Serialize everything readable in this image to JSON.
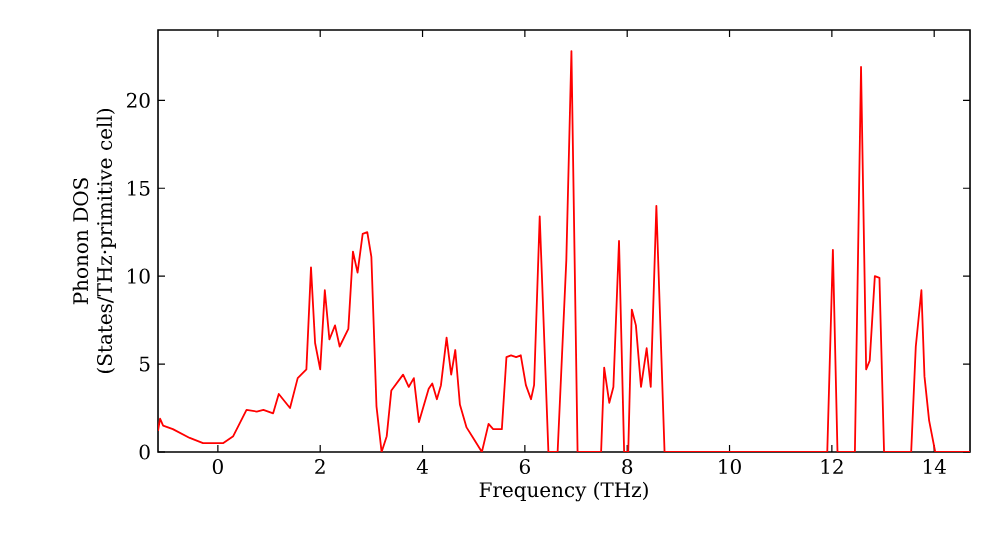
{
  "chart_data": {
    "type": "line",
    "xlabel": "Frequency (THz)",
    "ylabel": "Phonon DOS (States/THz·primitive cell)",
    "xlim": [
      -1.17,
      14.7
    ],
    "ylim": [
      0,
      24
    ],
    "xticks": [
      0,
      2,
      4,
      6,
      8,
      10,
      12,
      14
    ],
    "yticks": [
      0,
      5,
      10,
      15,
      20
    ],
    "series": [
      {
        "color": "#ff0000",
        "x": [
          -1.17,
          -1.13,
          -1.07,
          -0.88,
          -0.55,
          -0.29,
          0.1,
          0.3,
          0.56,
          0.76,
          0.89,
          1.08,
          1.19,
          1.41,
          1.56,
          1.73,
          1.82,
          1.9,
          2.0,
          2.09,
          2.18,
          2.29,
          2.38,
          2.55,
          2.64,
          2.73,
          2.83,
          2.92,
          3.0,
          3.1,
          3.2,
          3.3,
          3.39,
          3.62,
          3.73,
          3.83,
          3.93,
          4.12,
          4.19,
          4.28,
          4.36,
          4.47,
          4.56,
          4.64,
          4.73,
          4.86,
          4.99,
          5.16,
          5.29,
          5.38,
          5.55,
          5.64,
          5.73,
          5.83,
          5.92,
          6.02,
          6.12,
          6.18,
          6.29,
          6.46,
          6.64,
          6.81,
          6.91,
          7.03,
          7.49,
          7.55,
          7.65,
          7.73,
          7.84,
          7.94,
          8.02,
          8.09,
          8.17,
          8.27,
          8.38,
          8.46,
          8.57,
          8.73,
          11.91,
          12.02,
          12.11,
          12.45,
          12.57,
          12.67,
          12.74,
          12.84,
          12.93,
          13.02,
          13.55,
          13.64,
          13.75,
          13.81,
          13.9,
          14.02,
          14.7
        ],
        "values": [
          1.2,
          1.9,
          1.5,
          1.3,
          0.8,
          0.5,
          0.5,
          0.9,
          2.4,
          2.3,
          2.4,
          2.2,
          3.3,
          2.5,
          4.2,
          4.7,
          10.5,
          6.2,
          4.7,
          9.2,
          6.4,
          7.2,
          6.0,
          7.0,
          11.4,
          10.2,
          12.4,
          12.5,
          11.1,
          2.6,
          0,
          0.9,
          3.5,
          4.4,
          3.7,
          4.2,
          1.7,
          3.6,
          3.9,
          3.0,
          3.8,
          6.5,
          4.4,
          5.8,
          2.7,
          1.4,
          0.8,
          0,
          1.6,
          1.3,
          1.3,
          5.4,
          5.5,
          5.4,
          5.5,
          3.8,
          3.0,
          3.8,
          13.4,
          0,
          0,
          10.9,
          22.8,
          0,
          0,
          4.8,
          2.8,
          3.7,
          12.0,
          0,
          0,
          8.1,
          7.2,
          3.7,
          5.9,
          3.7,
          14.0,
          0,
          0,
          11.5,
          0,
          0,
          21.9,
          4.7,
          5.2,
          10.0,
          9.9,
          0,
          0,
          6.0,
          9.2,
          4.3,
          1.8,
          0,
          0
        ]
      }
    ]
  }
}
